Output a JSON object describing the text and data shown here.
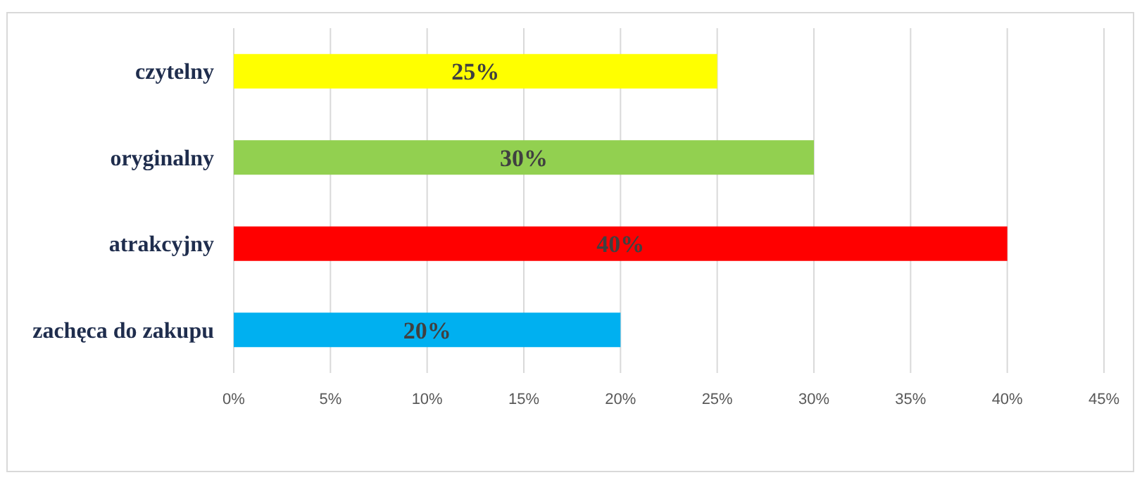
{
  "chart_data": {
    "type": "bar",
    "orientation": "horizontal",
    "categories": [
      "czytelny",
      "oryginalny",
      "atrakcyjny",
      "zachęca do zakupu"
    ],
    "values": [
      25,
      30,
      40,
      20
    ],
    "colors": [
      "#ffff00",
      "#92d050",
      "#ff0000",
      "#00b0f0"
    ],
    "value_labels": [
      "25%",
      "30%",
      "40%",
      "20%"
    ],
    "xlim": [
      0,
      45
    ],
    "xticks": [
      {
        "value": 0,
        "label": "0%"
      },
      {
        "value": 5,
        "label": "5%"
      },
      {
        "value": 10,
        "label": "10%"
      },
      {
        "value": 15,
        "label": "15%"
      },
      {
        "value": 20,
        "label": "20%"
      },
      {
        "value": 25,
        "label": "25%"
      },
      {
        "value": 30,
        "label": "30%"
      },
      {
        "value": 35,
        "label": "35%"
      },
      {
        "value": 40,
        "label": "40%"
      },
      {
        "value": 45,
        "label": "45%"
      }
    ],
    "grid": "x"
  }
}
